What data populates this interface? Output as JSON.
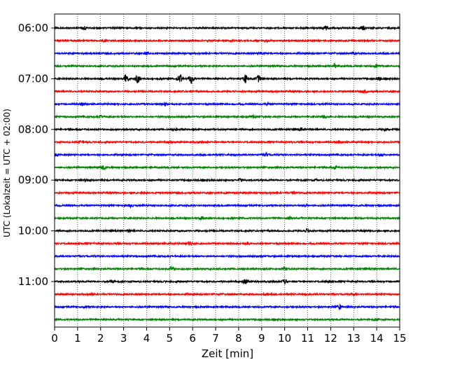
{
  "chart_data": {
    "type": "line",
    "title": "",
    "xlabel": "Zeit  [min]",
    "ylabel": "UTC (Lokalzeit = UTC + 02:00)",
    "xlim": [
      0,
      15
    ],
    "x_ticks": [
      0,
      1,
      2,
      3,
      4,
      5,
      6,
      7,
      8,
      9,
      10,
      11,
      12,
      13,
      14,
      15
    ],
    "x_tick_labels": [
      "0",
      "1",
      "2",
      "3",
      "4",
      "5",
      "6",
      "7",
      "8",
      "9",
      "10",
      "11",
      "12",
      "13",
      "14",
      "15"
    ],
    "y_tick_labels": [
      "06:00",
      "07:00",
      "08:00",
      "09:00",
      "10:00",
      "11:00"
    ],
    "grid": "vertical dotted",
    "trace_colors": [
      "#000000",
      "#ff0000",
      "#0000ff",
      "#008000"
    ],
    "row_interval_minutes": 15,
    "series": [
      {
        "start": "06:00",
        "color": "#000000",
        "events": [
          {
            "t": 1.3,
            "a": 0.45
          },
          {
            "t": 11.8,
            "a": 0.7
          },
          {
            "t": 13.4,
            "a": 0.75
          }
        ]
      },
      {
        "start": "06:15",
        "color": "#ff0000",
        "events": [
          {
            "t": 2.2,
            "a": 0.3
          },
          {
            "t": 9.2,
            "a": 0.3
          }
        ]
      },
      {
        "start": "06:30",
        "color": "#0000ff",
        "events": [
          {
            "t": 4.0,
            "a": 0.35
          },
          {
            "t": 9.0,
            "a": 0.4
          },
          {
            "t": 13.0,
            "a": 0.4
          }
        ]
      },
      {
        "start": "06:45",
        "color": "#008000",
        "events": [
          {
            "t": 12.2,
            "a": 0.6
          },
          {
            "t": 14.0,
            "a": 0.45
          }
        ]
      },
      {
        "start": "07:00",
        "color": "#000000",
        "events": [
          {
            "t": 3.1,
            "a": 1.3
          },
          {
            "t": 3.6,
            "a": 1.3
          },
          {
            "t": 5.45,
            "a": 1.4
          },
          {
            "t": 5.95,
            "a": 1.4
          },
          {
            "t": 8.3,
            "a": 1.3
          },
          {
            "t": 8.85,
            "a": 1.1
          },
          {
            "t": 14.1,
            "a": 0.6
          }
        ]
      },
      {
        "start": "07:15",
        "color": "#ff0000",
        "events": [
          {
            "t": 13.5,
            "a": 0.35
          }
        ]
      },
      {
        "start": "07:30",
        "color": "#0000ff",
        "events": [
          {
            "t": 1.2,
            "a": 0.4
          },
          {
            "t": 4.8,
            "a": 0.6
          },
          {
            "t": 9.3,
            "a": 0.35
          }
        ]
      },
      {
        "start": "07:45",
        "color": "#008000",
        "events": [
          {
            "t": 2.0,
            "a": 0.45
          },
          {
            "t": 8.6,
            "a": 0.4
          },
          {
            "t": 11.7,
            "a": 0.45
          }
        ]
      },
      {
        "start": "08:00",
        "color": "#000000",
        "events": [
          {
            "t": 5.2,
            "a": 0.3
          },
          {
            "t": 10.7,
            "a": 0.45
          },
          {
            "t": 14.4,
            "a": 0.4
          }
        ]
      },
      {
        "start": "08:15",
        "color": "#ff0000",
        "events": [
          {
            "t": 1.1,
            "a": 0.3
          },
          {
            "t": 5.0,
            "a": 0.35
          },
          {
            "t": 12.4,
            "a": 0.4
          }
        ]
      },
      {
        "start": "08:30",
        "color": "#0000ff",
        "events": [
          {
            "t": 0.1,
            "a": 0.5
          },
          {
            "t": 9.2,
            "a": 0.4
          },
          {
            "t": 14.2,
            "a": 0.35
          }
        ]
      },
      {
        "start": "08:45",
        "color": "#008000",
        "events": [
          {
            "t": 2.1,
            "a": 0.9
          },
          {
            "t": 12.2,
            "a": 0.4
          }
        ]
      },
      {
        "start": "09:00",
        "color": "#000000",
        "events": [
          {
            "t": 1.4,
            "a": 0.3
          },
          {
            "t": 8.1,
            "a": 0.45
          },
          {
            "t": 11.3,
            "a": 0.3
          }
        ]
      },
      {
        "start": "09:15",
        "color": "#ff0000",
        "events": [
          {
            "t": 3.9,
            "a": 0.3
          },
          {
            "t": 7.5,
            "a": 0.3
          },
          {
            "t": 10.4,
            "a": 0.3
          }
        ]
      },
      {
        "start": "09:30",
        "color": "#0000ff",
        "events": [
          {
            "t": 3.3,
            "a": 0.4
          },
          {
            "t": 10.9,
            "a": 0.3
          }
        ]
      },
      {
        "start": "09:45",
        "color": "#008000",
        "events": [
          {
            "t": 6.4,
            "a": 0.35
          },
          {
            "t": 10.2,
            "a": 0.4
          }
        ]
      },
      {
        "start": "10:00",
        "color": "#000000",
        "events": [
          {
            "t": 3.3,
            "a": 0.3
          },
          {
            "t": 11.0,
            "a": 0.45
          }
        ]
      },
      {
        "start": "10:15",
        "color": "#ff0000",
        "events": [
          {
            "t": 5.9,
            "a": 0.6
          },
          {
            "t": 8.4,
            "a": 0.3
          }
        ]
      },
      {
        "start": "10:30",
        "color": "#0000ff",
        "events": [
          {
            "t": 9.0,
            "a": 0.3
          }
        ]
      },
      {
        "start": "10:45",
        "color": "#008000",
        "events": [
          {
            "t": 5.1,
            "a": 0.7
          },
          {
            "t": 10.0,
            "a": 0.45
          }
        ]
      },
      {
        "start": "11:00",
        "color": "#000000",
        "events": [
          {
            "t": 2.5,
            "a": 0.45
          },
          {
            "t": 8.3,
            "a": 1.0
          },
          {
            "t": 10.0,
            "a": 0.65
          },
          {
            "t": 11.9,
            "a": 0.35
          }
        ]
      },
      {
        "start": "11:15",
        "color": "#ff0000",
        "events": [
          {
            "t": 1.6,
            "a": 0.3
          },
          {
            "t": 9.2,
            "a": 0.3
          },
          {
            "t": 13.0,
            "a": 0.3
          }
        ]
      },
      {
        "start": "11:30",
        "color": "#0000ff",
        "events": [
          {
            "t": 1.3,
            "a": 0.3
          },
          {
            "t": 12.4,
            "a": 0.7
          }
        ]
      },
      {
        "start": "11:45",
        "color": "#008000",
        "events": [
          {
            "t": 14.0,
            "a": 0.3
          }
        ]
      }
    ]
  }
}
